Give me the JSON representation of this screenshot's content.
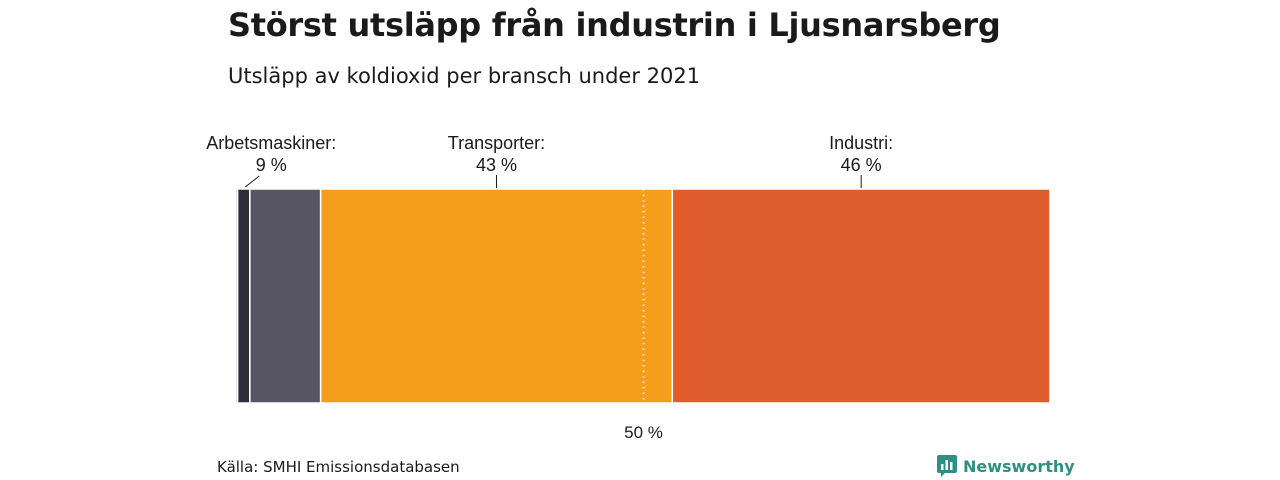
{
  "header": {
    "title": "Störst utsläpp från industrin i Ljusnarsberg",
    "subtitle": "Utsläpp av koldioxid per bransch under 2021"
  },
  "footer": {
    "source": "Källa: SMHI Emissionsdatabasen",
    "brand": "Newsworthy",
    "brand_icon": "newsworthy-logo-icon",
    "brand_color": "#2f8f83"
  },
  "chart_data": {
    "type": "bar",
    "orientation": "horizontal-stacked",
    "unit": "%",
    "xlim": [
      0,
      100
    ],
    "reference_line": {
      "value": 50,
      "label": "50 %",
      "style": "dotted"
    },
    "segments": [
      {
        "label": "",
        "value_label": "",
        "value": 0.2,
        "color": "#6b2d5c"
      },
      {
        "label": "",
        "value_label": "",
        "value": 1.5,
        "color": "#2e2c38"
      },
      {
        "label": "Arbetsmaskiner:",
        "value_label": "9 %",
        "value": 8.7,
        "color": "#575563"
      },
      {
        "label": "Transporter:",
        "value_label": "43 %",
        "value": 43.2,
        "color": "#f59e1b"
      },
      {
        "label": "Industri:",
        "value_label": "46 %",
        "value": 46.4,
        "color": "#e05e2e"
      }
    ]
  }
}
